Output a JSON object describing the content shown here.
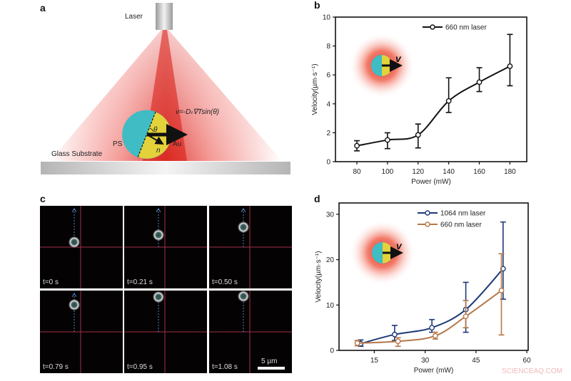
{
  "panel_a": {
    "label": "a",
    "laser_label": "Laser",
    "formula": "v=-Dₜ∇Tsin(θ)",
    "theta_label": "θ",
    "n_label": "n",
    "ps_label": "PS",
    "au_label": "Au",
    "substrate_label": "Glass Substrate"
  },
  "panel_c": {
    "label": "c",
    "frames": [
      {
        "time": "t=0 s"
      },
      {
        "time": "t=0.21 s"
      },
      {
        "time": "t=0.50 s"
      },
      {
        "time": "t=0.79 s"
      },
      {
        "time": "t=0.95 s"
      },
      {
        "time": "t=1.08 s"
      }
    ],
    "scale_bar": "5 µm"
  },
  "inset_label": "v",
  "watermark": "SCIENCEAQ.COM",
  "chart_data": [
    {
      "panel": "b",
      "type": "line",
      "xlabel": "Power (mW)",
      "ylabel": "Velocity(µm·s⁻¹)",
      "xticks": [
        80,
        100,
        120,
        140,
        160,
        180
      ],
      "yticks": [
        0,
        2,
        4,
        6,
        8,
        10
      ],
      "xlim": [
        66,
        191
      ],
      "ylim": [
        0,
        10
      ],
      "legend": "top-right",
      "series": [
        {
          "name": "660 nm laser",
          "color": "#111111",
          "x": [
            80,
            100,
            120,
            140,
            160,
            180
          ],
          "y": [
            1.1,
            1.5,
            1.85,
            4.2,
            5.5,
            6.6
          ],
          "err_low": [
            0.75,
            0.9,
            0.95,
            3.4,
            4.85,
            5.25
          ],
          "err_high": [
            1.45,
            2.0,
            2.6,
            5.8,
            6.5,
            8.8
          ]
        }
      ]
    },
    {
      "panel": "d",
      "type": "line",
      "xlabel": "Power (mW)",
      "ylabel": "Velocity(µm·s⁻¹)",
      "xticks": [
        15,
        30,
        45,
        60
      ],
      "yticks": [
        0,
        10,
        20,
        30
      ],
      "xlim": [
        4.6,
        60.4
      ],
      "ylim": [
        0,
        32.5
      ],
      "legend": "top-right",
      "series": [
        {
          "name": "1064 nm laser",
          "color": "#1f3a78",
          "x": [
            11,
            21,
            32,
            42,
            53
          ],
          "y": [
            1.5,
            3.5,
            5.0,
            9.0,
            18.0
          ],
          "err_low": [
            0.9,
            2.2,
            4.0,
            4.0,
            11.3
          ],
          "err_high": [
            2.3,
            5.5,
            6.8,
            15.0,
            28.3
          ]
        },
        {
          "name": "660 nm laser",
          "color": "#b5784a",
          "x": [
            10,
            22,
            33,
            42,
            52.5
          ],
          "y": [
            1.6,
            2.0,
            3.2,
            7.5,
            13.2
          ],
          "err_low": [
            1.0,
            0.9,
            2.5,
            5.0,
            3.4
          ],
          "err_high": [
            2.2,
            2.8,
            4.0,
            11.0,
            21.3
          ]
        }
      ]
    }
  ]
}
